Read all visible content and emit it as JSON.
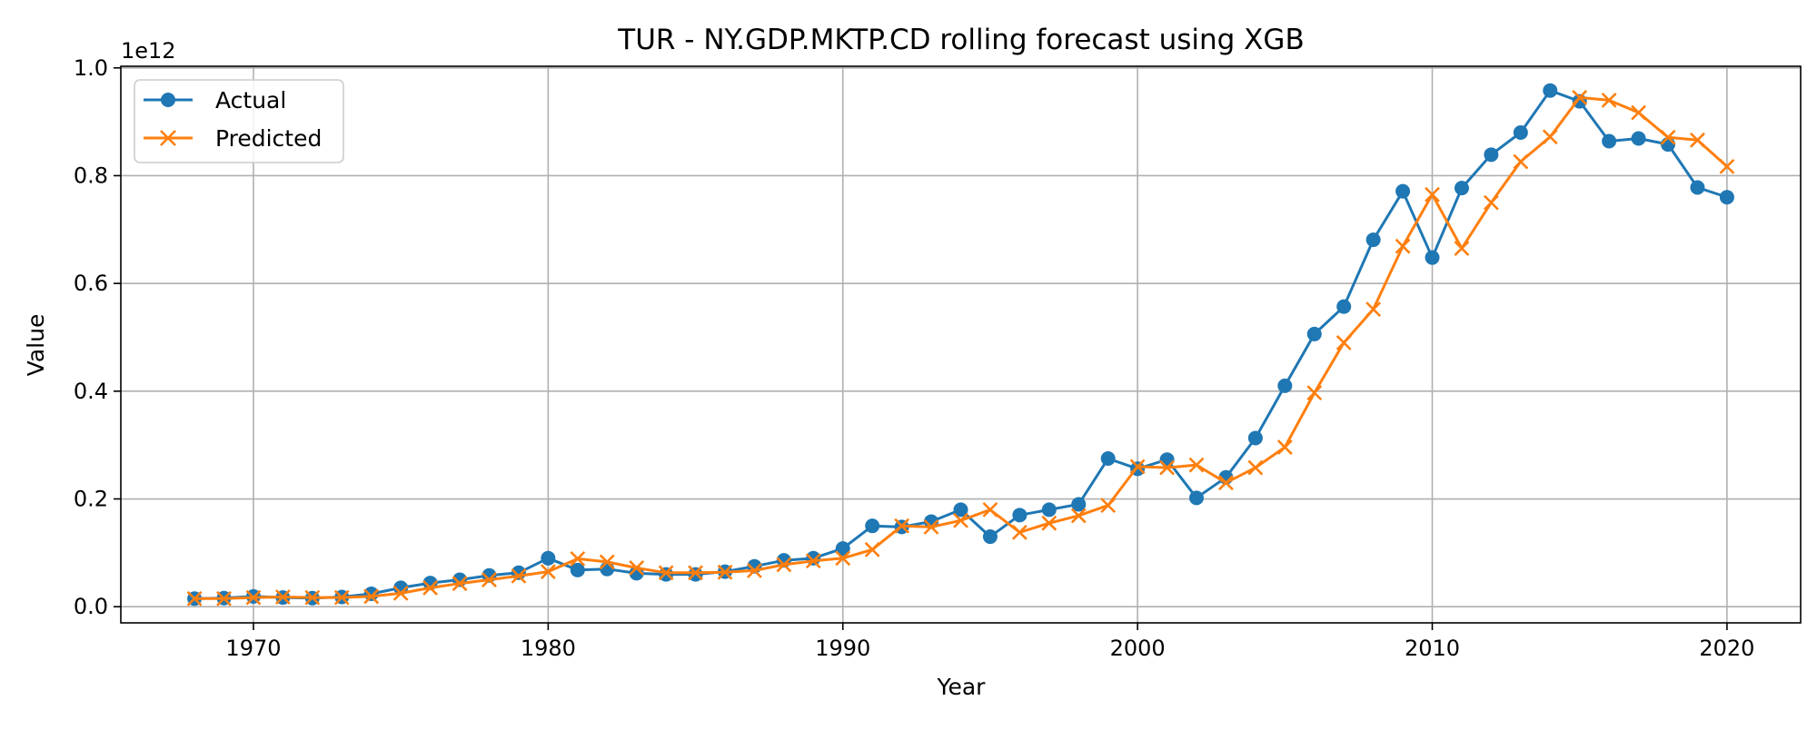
{
  "chart_data": {
    "type": "line",
    "title": "TUR - NY.GDP.MKTP.CD rolling forecast using XGB",
    "xlabel": "Year",
    "ylabel": "Value",
    "y_offset_text": "1e12",
    "xlim": [
      1965.5,
      2022.5
    ],
    "ylim": [
      -0.03,
      1.003
    ],
    "x_ticks": [
      1970,
      1980,
      1990,
      2000,
      2010,
      2020
    ],
    "y_ticks": [
      0.0,
      0.2,
      0.4,
      0.6,
      0.8,
      1.0
    ],
    "x_tick_labels": [
      "1970",
      "1980",
      "1990",
      "2000",
      "2010",
      "2020"
    ],
    "y_tick_labels": [
      "0.0",
      "0.2",
      "0.4",
      "0.6",
      "0.8",
      "1.0"
    ],
    "grid": true,
    "legend_position": "upper-left",
    "x": [
      1968,
      1969,
      1970,
      1971,
      1972,
      1973,
      1974,
      1975,
      1976,
      1977,
      1978,
      1979,
      1980,
      1981,
      1982,
      1983,
      1984,
      1985,
      1986,
      1987,
      1988,
      1989,
      1990,
      1991,
      1992,
      1993,
      1994,
      1995,
      1996,
      1997,
      1998,
      1999,
      2000,
      2001,
      2002,
      2003,
      2004,
      2005,
      2006,
      2007,
      2008,
      2009,
      2010,
      2011,
      2012,
      2013,
      2014,
      2015,
      2016,
      2017,
      2018,
      2019,
      2020
    ],
    "series": [
      {
        "name": "Actual",
        "color": "#1f77b4",
        "marker": "circle",
        "values": [
          0.015,
          0.016,
          0.019,
          0.017,
          0.016,
          0.018,
          0.024,
          0.035,
          0.044,
          0.05,
          0.058,
          0.063,
          0.09,
          0.068,
          0.07,
          0.062,
          0.06,
          0.06,
          0.065,
          0.075,
          0.086,
          0.09,
          0.108,
          0.15,
          0.148,
          0.158,
          0.18,
          0.13,
          0.17,
          0.18,
          0.19,
          0.275,
          0.256,
          0.273,
          0.202,
          0.24,
          0.313,
          0.41,
          0.506,
          0.557,
          0.681,
          0.771,
          0.648,
          0.777,
          0.839,
          0.88,
          0.958,
          0.938,
          0.864,
          0.869,
          0.858,
          0.778,
          0.76
        ]
      },
      {
        "name": "Predicted",
        "color": "#ff7f0e",
        "marker": "x",
        "values": [
          0.015,
          0.015,
          0.017,
          0.018,
          0.017,
          0.017,
          0.019,
          0.025,
          0.035,
          0.043,
          0.05,
          0.057,
          0.065,
          0.089,
          0.083,
          0.072,
          0.063,
          0.063,
          0.064,
          0.067,
          0.078,
          0.085,
          0.09,
          0.106,
          0.15,
          0.148,
          0.16,
          0.18,
          0.138,
          0.155,
          0.169,
          0.188,
          0.26,
          0.258,
          0.263,
          0.23,
          0.258,
          0.296,
          0.397,
          0.49,
          0.552,
          0.669,
          0.765,
          0.665,
          0.75,
          0.826,
          0.872,
          0.945,
          0.94,
          0.917,
          0.871,
          0.866,
          0.817
        ]
      }
    ]
  }
}
